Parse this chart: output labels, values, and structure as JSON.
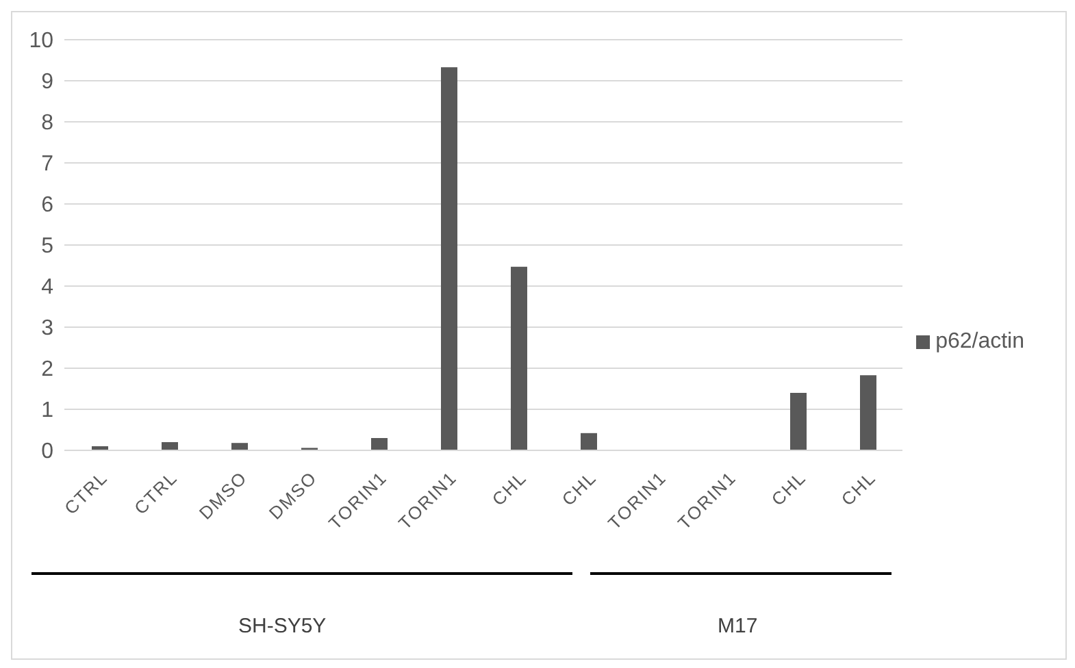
{
  "chart_data": {
    "type": "bar",
    "categories": [
      "CTRL",
      "CTRL",
      "DMSO",
      "DMSO",
      "TORIN1",
      "TORIN1",
      "CHL",
      "CHL",
      "TORIN1",
      "TORIN1",
      "CHL",
      "CHL"
    ],
    "series": [
      {
        "name": "p62/actin",
        "color": "#595959",
        "values": [
          0.1,
          0.2,
          0.18,
          0.06,
          0.3,
          9.33,
          4.47,
          0.42,
          0,
          0,
          1.4,
          1.83
        ]
      }
    ],
    "ylim": [
      0,
      10
    ],
    "yticks": [
      0,
      1,
      2,
      3,
      4,
      5,
      6,
      7,
      8,
      9,
      10
    ],
    "grid": "y",
    "legend": "right",
    "annotations": [
      "SH-SY5Y",
      "M17"
    ]
  }
}
